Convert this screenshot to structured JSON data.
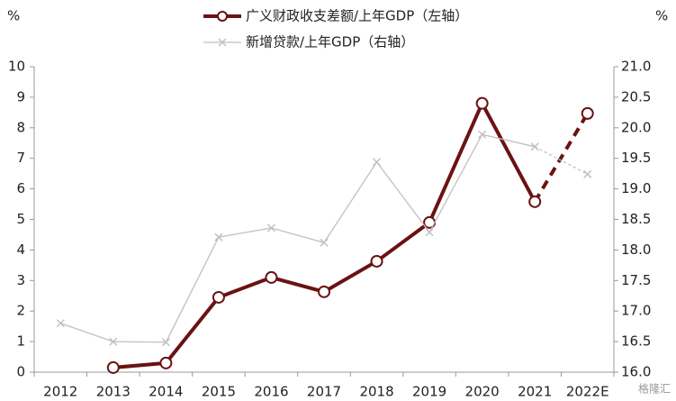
{
  "chart_data": {
    "type": "line",
    "y_unit": "%",
    "y2_unit": "%",
    "categories": [
      "2012",
      "2013",
      "2014",
      "2015",
      "2016",
      "2017",
      "2018",
      "2019",
      "2020",
      "2021",
      "2022E"
    ],
    "series": [
      {
        "name": "广义财政收支差额/上年GDP（左轴）",
        "color": "#6b1212",
        "axis": "y",
        "marker": "circle",
        "dashed_last_segment": true,
        "values": [
          null,
          0.15,
          0.3,
          2.45,
          3.1,
          2.63,
          3.63,
          4.9,
          8.8,
          5.58,
          8.47
        ]
      },
      {
        "name": "新增贷款/上年GDP（右轴）",
        "color": "#c0c0c0",
        "axis": "y2",
        "marker": "x",
        "dashed_last_segment": true,
        "values": [
          16.8,
          16.5,
          16.49,
          18.21,
          18.36,
          18.12,
          19.44,
          18.29,
          19.89,
          19.69,
          19.24
        ]
      }
    ],
    "ylim": [
      0,
      10
    ],
    "yticks": [
      0,
      1,
      2,
      3,
      4,
      5,
      6,
      7,
      8,
      9,
      10
    ],
    "y2lim": [
      16,
      21
    ],
    "y2ticks": [
      {
        "value": 16,
        "label": "16.0"
      },
      {
        "value": 16.5,
        "label": "16.5"
      },
      {
        "value": 17,
        "label": "17.0"
      },
      {
        "value": 17.5,
        "label": "17.5"
      },
      {
        "value": 18,
        "label": "18.0"
      },
      {
        "value": 18.5,
        "label": "18.5"
      },
      {
        "value": 19,
        "label": "19.0"
      },
      {
        "value": 19.5,
        "label": "19.5"
      },
      {
        "value": 20,
        "label": "20.0"
      },
      {
        "value": 20.5,
        "label": "20.5"
      },
      {
        "value": 21,
        "label": "21.0"
      }
    ],
    "legend": "top",
    "watermark": "格隆汇"
  }
}
